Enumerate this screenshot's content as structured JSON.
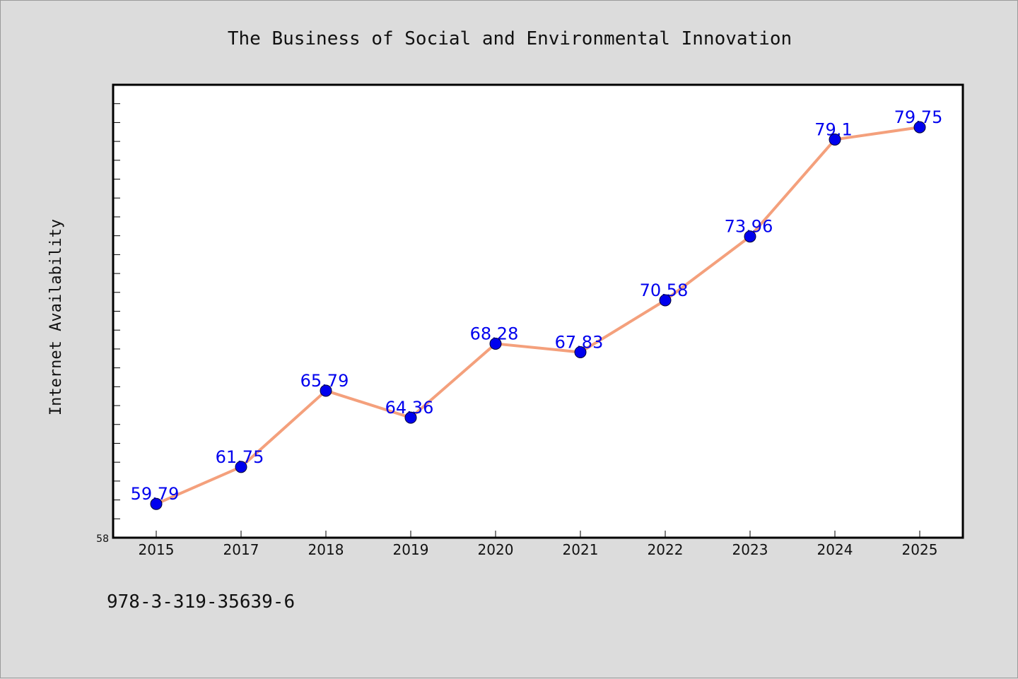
{
  "chart_data": {
    "type": "line",
    "title": "The Business of Social and Environmental Innovation",
    "ylabel": "Internet Availability",
    "xlabel": "",
    "categories": [
      "2015",
      "2017",
      "2018",
      "2019",
      "2020",
      "2021",
      "2022",
      "2023",
      "2024",
      "2025"
    ],
    "values": [
      59.79,
      61.75,
      65.79,
      64.36,
      68.28,
      67.83,
      70.58,
      73.96,
      79.1,
      79.75
    ],
    "data_labels": [
      "59.79",
      "61.75",
      "65.79",
      "64.36",
      "68.28",
      "67.83",
      "70.58",
      "73.96",
      "79.1",
      "79.75"
    ],
    "ytick_label": "58",
    "ylim": [
      58,
      82
    ],
    "y_minor_step": 1,
    "grid": false,
    "colors": {
      "line": "#f4a07c",
      "marker": "#0000ee",
      "label": "#0000ee",
      "plot_bg": "#ffffff",
      "page_bg": "#dcdcdc"
    }
  },
  "footer": {
    "isbn": "978-3-319-35639-6"
  }
}
